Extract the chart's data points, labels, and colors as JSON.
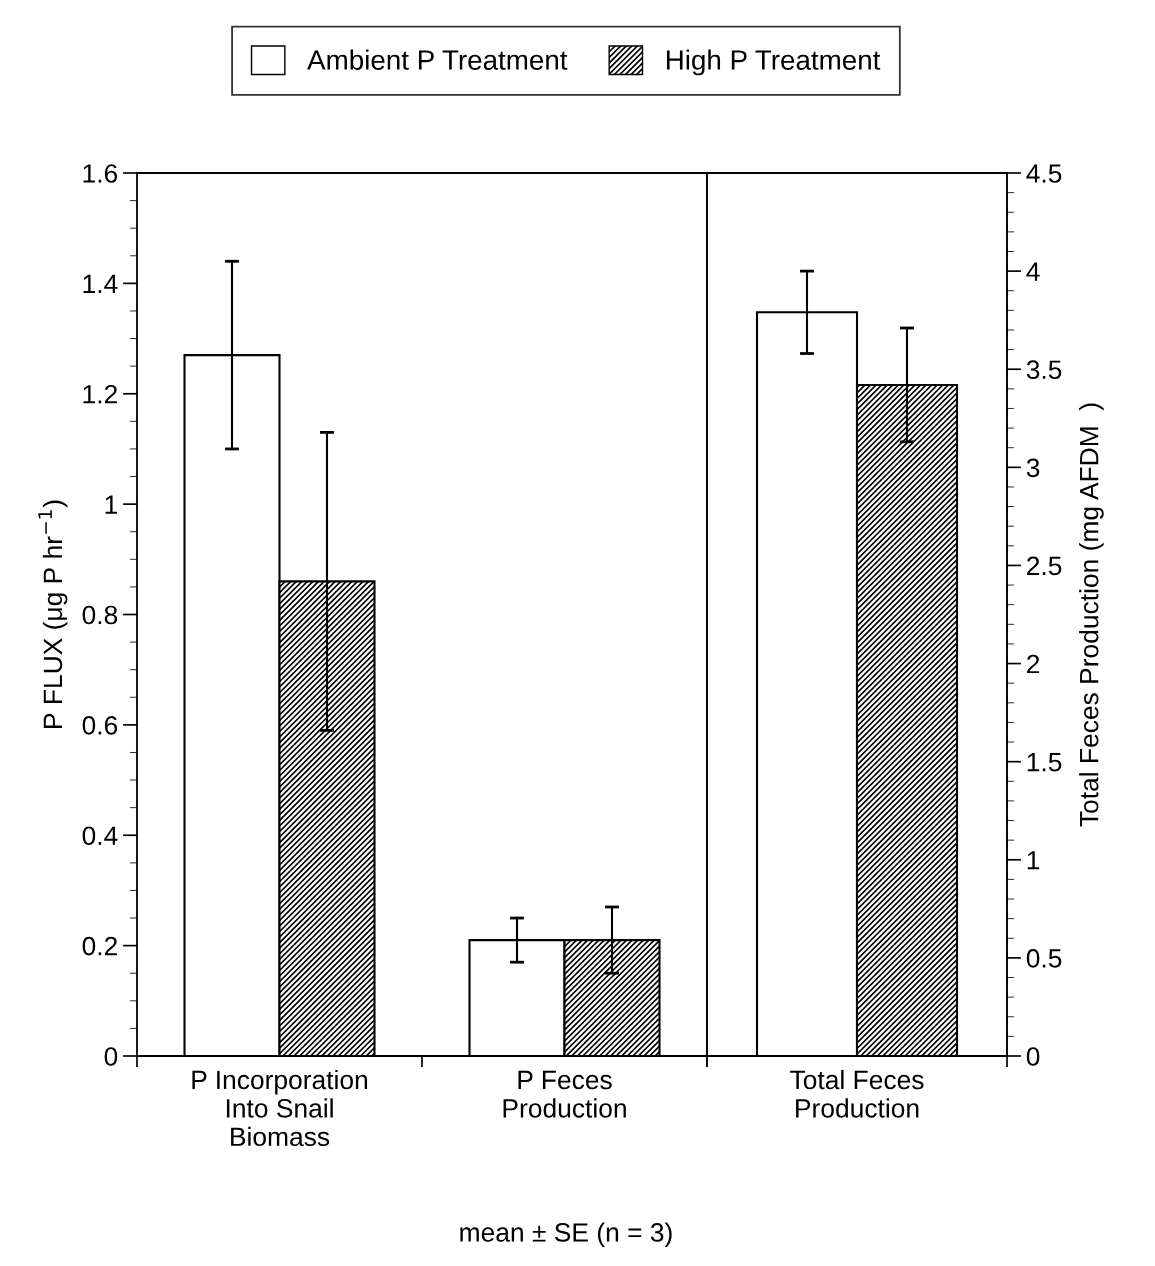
{
  "chart_data": [
    {
      "type": "bar",
      "categories": [
        "P Incorporation\nInto Snail\nBiomass",
        "P Feces\nProduction"
      ],
      "ylabel": "P FLUX (μg P hr$^{−1}$)",
      "ylim": [
        0,
        1.6
      ],
      "yticks": [
        0,
        0.2,
        0.4,
        0.6,
        0.8,
        1,
        1.2,
        1.4,
        1.6
      ],
      "legend": "top",
      "annotations": [
        "mean ± SE (n = 3)"
      ],
      "series": [
        {
          "name": "Ambient P Treatment",
          "color": "#ffffff",
          "values": [
            1.27,
            0.21
          ],
          "errors": [
            0.17,
            0.04
          ]
        },
        {
          "name": "High P Treatment",
          "color": "#000000",
          "values": [
            0.86,
            0.21
          ],
          "errors": [
            0.27,
            0.06
          ]
        }
      ]
    },
    {
      "type": "bar",
      "categories": [
        "Total Feces\nProduction"
      ],
      "y2label": "Total Feces Production (mg AFDM  )",
      "y2lim": [
        0,
        4.5
      ],
      "y2ticks": [
        0,
        0.5,
        1,
        1.5,
        2,
        2.5,
        3,
        3.5,
        4,
        4.5
      ],
      "series": [
        {
          "color": "#ffffff",
          "values": [
            3.79
          ],
          "errors": [
            0.21
          ],
          "axis": "y2"
        },
        {
          "color": "#000000",
          "values": [
            3.42
          ],
          "errors": [
            0.29
          ],
          "axis": "y2"
        }
      ]
    }
  ]
}
